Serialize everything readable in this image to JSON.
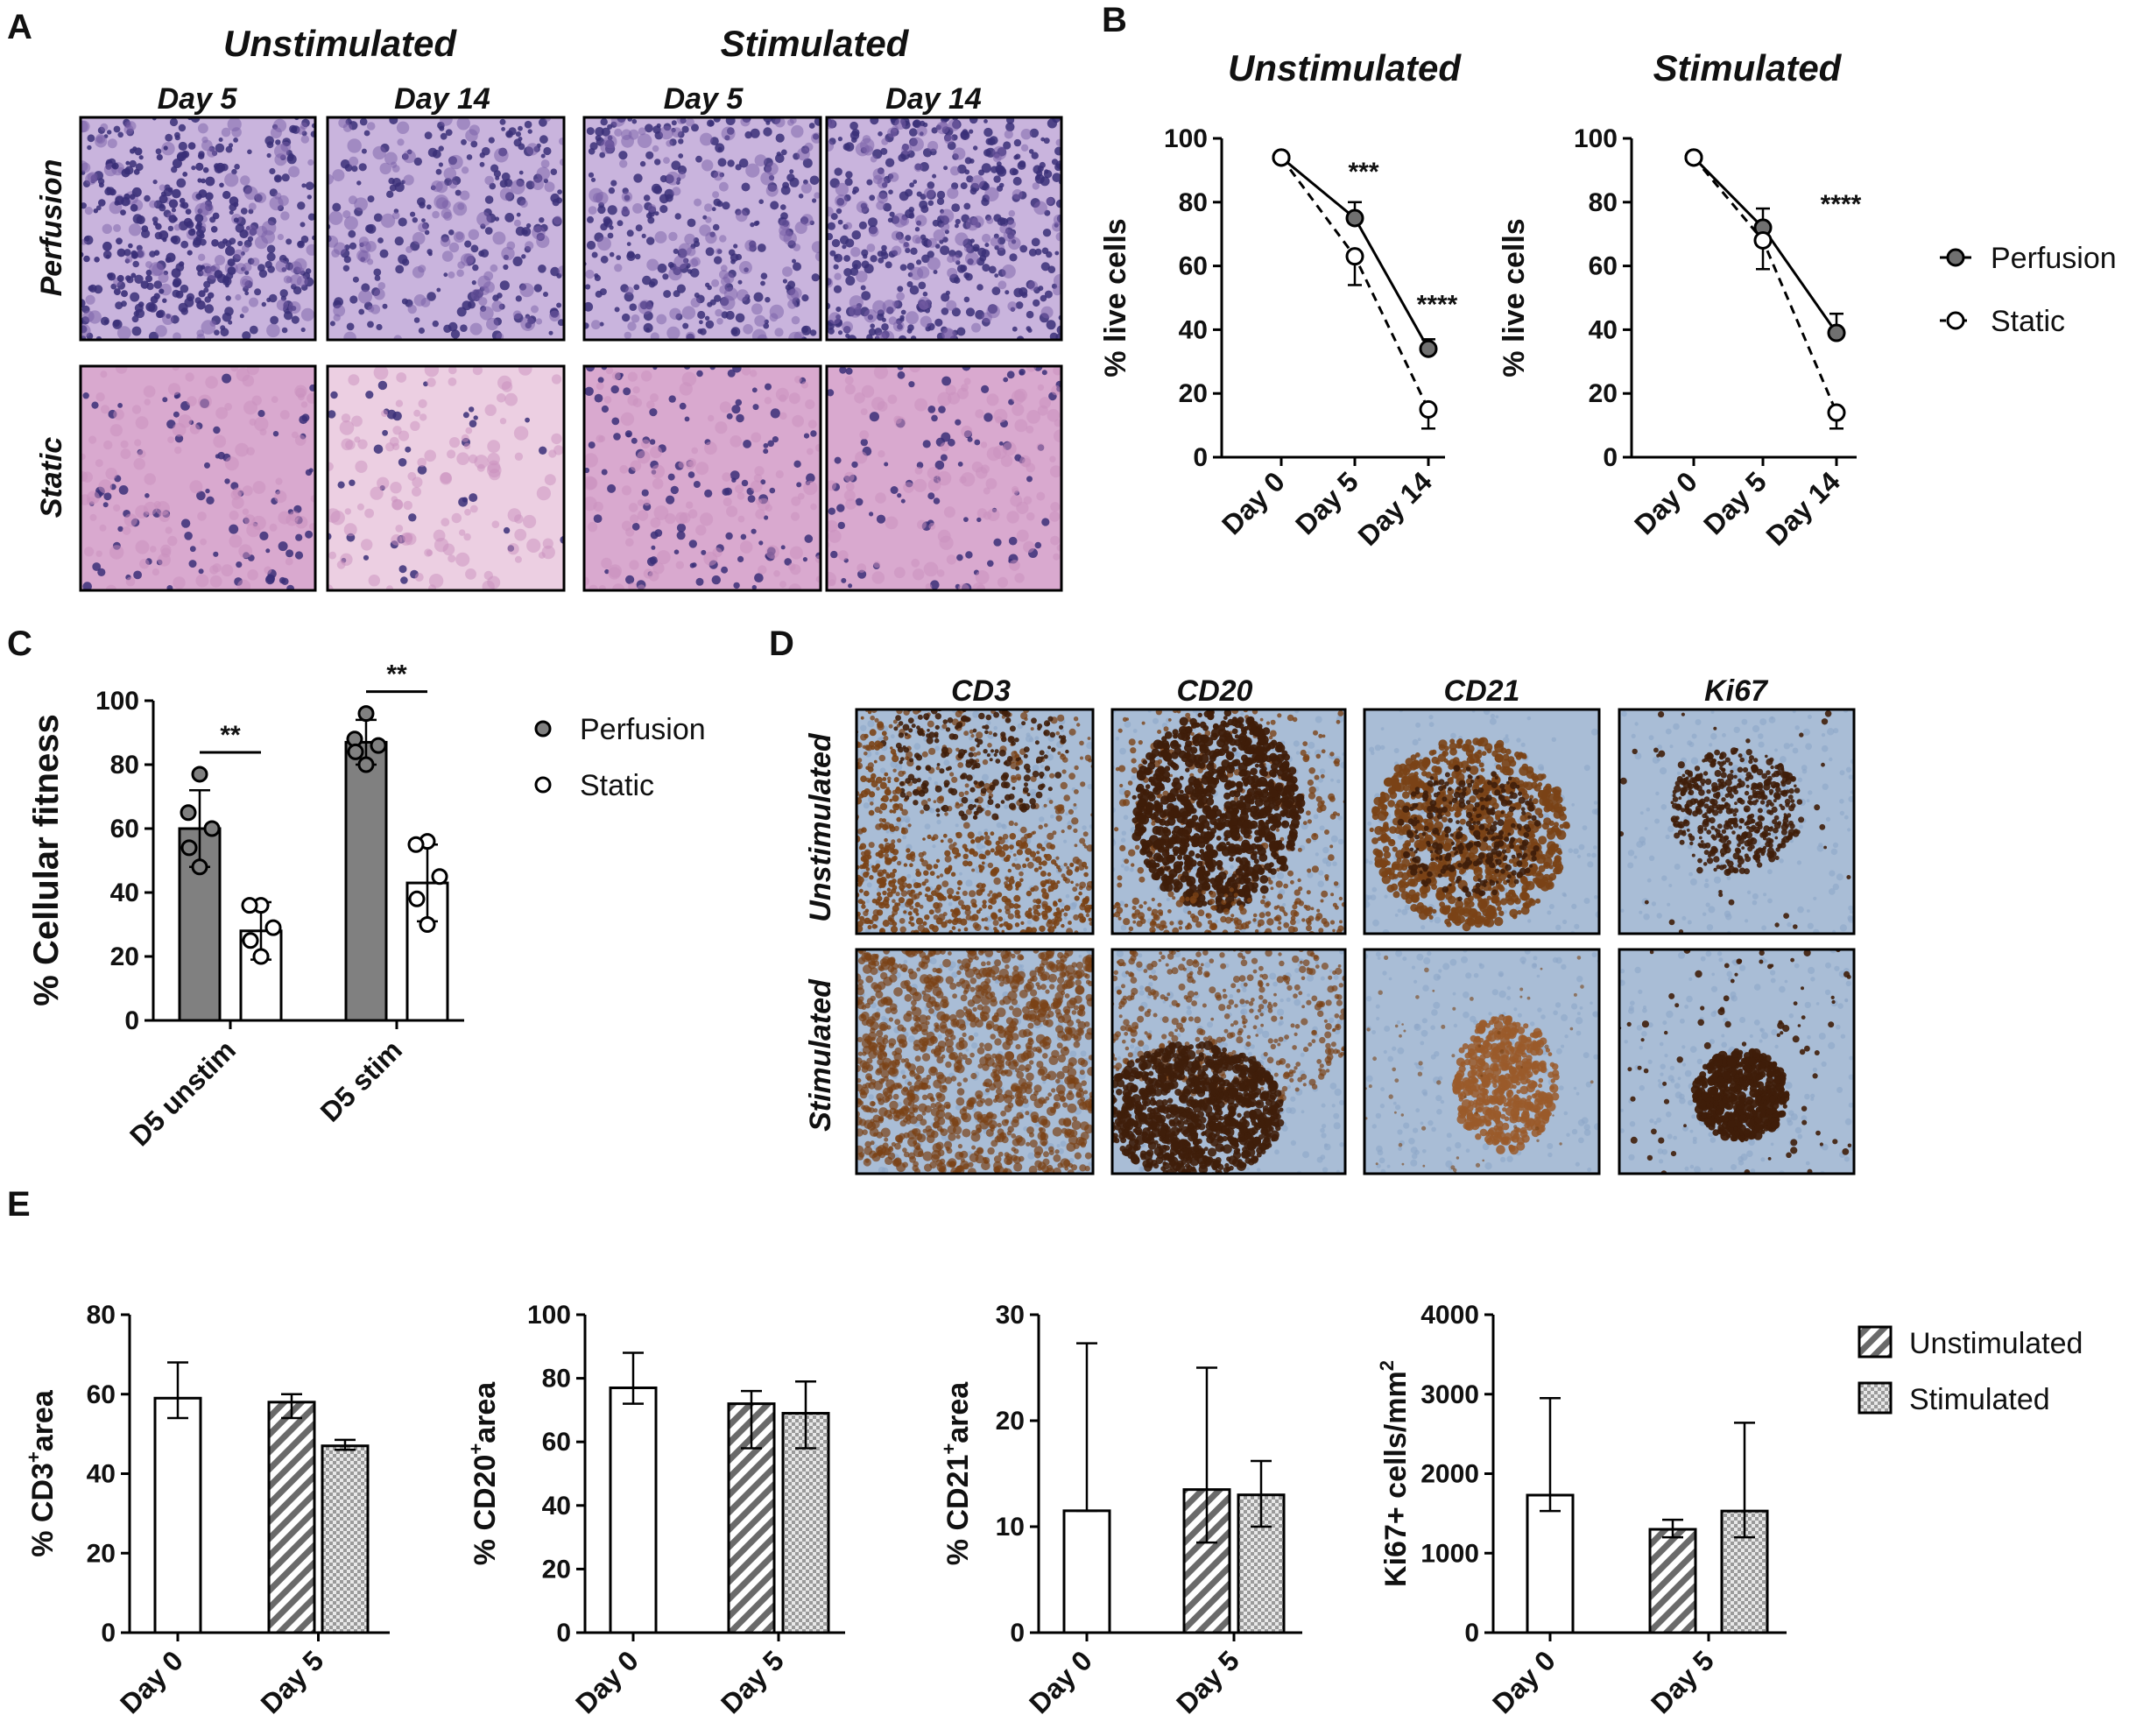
{
  "panel_labels": {
    "a": "A",
    "b": "B",
    "c": "C",
    "d": "D",
    "e": "E"
  },
  "panel_a": {
    "group_titles": [
      "Unstimulated",
      "Stimulated"
    ],
    "column_titles": [
      "Day 5",
      "Day 14",
      "Day 5",
      "Day 14"
    ],
    "row_titles": [
      "Perfusion",
      "Static"
    ],
    "stain_colors": {
      "dense_nuclei": "#3a2f78",
      "medium": "#7a5fa8",
      "pink_matrix": "#d9a9cf",
      "pale": "#eccfe2"
    }
  },
  "panel_d": {
    "column_titles": [
      "CD3",
      "CD20",
      "CD21",
      "Ki67"
    ],
    "row_titles": [
      "Unstimulated",
      "Stimulated"
    ],
    "stain_colors": {
      "background_blue": "#a9bdd6",
      "dab_brown": "#7a4216",
      "dark_brown": "#3f1e0a"
    }
  },
  "chart_data": [
    {
      "id": "B-left",
      "type": "line",
      "title": "Unstimulated",
      "categories": [
        "Day 0",
        "Day 5",
        "Day 14"
      ],
      "ylabel": "% live cells",
      "ylim": [
        0,
        100
      ],
      "yticks": [
        0,
        20,
        40,
        60,
        80,
        100
      ],
      "series": [
        {
          "name": "Perfusion",
          "values": [
            94,
            75,
            34
          ],
          "errors": [
            0,
            5,
            3
          ],
          "marker": "filled",
          "line": "solid"
        },
        {
          "name": "Static",
          "values": [
            94,
            63,
            15
          ],
          "errors": [
            0,
            9,
            6
          ],
          "marker": "open",
          "line": "dashed"
        }
      ],
      "annotations": [
        {
          "text": "***",
          "category": "Day 5"
        },
        {
          "text": "****",
          "category": "Day 14"
        }
      ]
    },
    {
      "id": "B-right",
      "type": "line",
      "title": "Stimulated",
      "categories": [
        "Day 0",
        "Day 5",
        "Day 14"
      ],
      "ylabel": "% live cells",
      "ylim": [
        0,
        100
      ],
      "yticks": [
        0,
        20,
        40,
        60,
        80,
        100
      ],
      "series": [
        {
          "name": "Perfusion",
          "values": [
            94,
            72,
            39
          ],
          "errors": [
            0,
            6,
            6
          ],
          "marker": "filled",
          "line": "solid"
        },
        {
          "name": "Static",
          "values": [
            94,
            68,
            14
          ],
          "errors": [
            0,
            9,
            5
          ],
          "marker": "open",
          "line": "dashed"
        }
      ],
      "annotations": [
        {
          "text": "****",
          "category": "Day 14"
        }
      ],
      "legend": [
        "Perfusion",
        "Static"
      ]
    },
    {
      "id": "C",
      "type": "bar",
      "categories": [
        "D5 unstim",
        "D5 stim"
      ],
      "ylabel": "% Cellular fitness",
      "ylim": [
        0,
        100
      ],
      "yticks": [
        0,
        20,
        40,
        60,
        80,
        100
      ],
      "series": [
        {
          "name": "Perfusion",
          "values": [
            60,
            87
          ],
          "errors": [
            12,
            7
          ],
          "points": [
            [
              77,
              65,
              60,
              54,
              48
            ],
            [
              96,
              88,
              86,
              84,
              80
            ]
          ],
          "color": "#808080"
        },
        {
          "name": "Static",
          "values": [
            28,
            43
          ],
          "errors": [
            9,
            12
          ],
          "points": [
            [
              36,
              36,
              29,
              25,
              20
            ],
            [
              56,
              55,
              45,
              38,
              30
            ]
          ],
          "color": "#ffffff"
        }
      ],
      "annotations": [
        {
          "text": "**",
          "category": "D5 unstim"
        },
        {
          "text": "**",
          "category": "D5 stim"
        }
      ],
      "legend": [
        "Perfusion",
        "Static"
      ]
    },
    {
      "id": "E1",
      "type": "bar",
      "categories": [
        "Day 0",
        "Day 5"
      ],
      "ylabel_main": "% CD3",
      "ylabel_sup": "+",
      "ylabel_tail": "area",
      "ylim": [
        0,
        80
      ],
      "yticks": [
        0,
        20,
        40,
        60,
        80
      ],
      "bars": [
        {
          "category": "Day 0",
          "value": 59,
          "err_low": 5,
          "err_high": 9,
          "fill": "white"
        },
        {
          "category": "Day 5",
          "series": "Unstimulated",
          "value": 58,
          "err_low": 4,
          "err_high": 2,
          "fill": "hatch"
        },
        {
          "category": "Day 5",
          "series": "Stimulated",
          "value": 47,
          "err_low": 1,
          "err_high": 1.5,
          "fill": "check"
        }
      ]
    },
    {
      "id": "E2",
      "type": "bar",
      "categories": [
        "Day 0",
        "Day 5"
      ],
      "ylabel_main": "% CD20",
      "ylabel_sup": "+",
      "ylabel_tail": "area",
      "ylim": [
        0,
        100
      ],
      "yticks": [
        0,
        20,
        40,
        60,
        80,
        100
      ],
      "bars": [
        {
          "category": "Day 0",
          "value": 77,
          "err_low": 5,
          "err_high": 11,
          "fill": "white"
        },
        {
          "category": "Day 5",
          "series": "Unstimulated",
          "value": 72,
          "err_low": 14,
          "err_high": 4,
          "fill": "hatch"
        },
        {
          "category": "Day 5",
          "series": "Stimulated",
          "value": 69,
          "err_low": 11,
          "err_high": 10,
          "fill": "check"
        }
      ]
    },
    {
      "id": "E3",
      "type": "bar",
      "categories": [
        "Day 0",
        "Day 5"
      ],
      "ylabel_main": "% CD21",
      "ylabel_sup": "+",
      "ylabel_tail": "area",
      "ylim": [
        0,
        30
      ],
      "yticks": [
        0,
        10,
        20,
        30
      ],
      "bars": [
        {
          "category": "Day 0",
          "value": 11.5,
          "err_low": 0,
          "err_high": 15.8,
          "fill": "white"
        },
        {
          "category": "Day 5",
          "series": "Unstimulated",
          "value": 13.5,
          "err_low": 5,
          "err_high": 11.5,
          "fill": "hatch"
        },
        {
          "category": "Day 5",
          "series": "Stimulated",
          "value": 13,
          "err_low": 3,
          "err_high": 3.2,
          "fill": "check"
        }
      ]
    },
    {
      "id": "E4",
      "type": "bar",
      "categories": [
        "Day 0",
        "Day 5"
      ],
      "ylabel_main": "Ki67+ cells/mm",
      "ylabel_sup": "2",
      "ylabel_tail": "",
      "ylim": [
        0,
        4000
      ],
      "yticks": [
        0,
        1000,
        2000,
        3000,
        4000
      ],
      "bars": [
        {
          "category": "Day 0",
          "value": 1730,
          "err_low": 200,
          "err_high": 1220,
          "fill": "white"
        },
        {
          "category": "Day 5",
          "series": "Unstimulated",
          "value": 1300,
          "err_low": 100,
          "err_high": 120,
          "fill": "hatch"
        },
        {
          "category": "Day 5",
          "series": "Stimulated",
          "value": 1530,
          "err_low": 330,
          "err_high": 1110,
          "fill": "check"
        }
      ],
      "legend": [
        "Unstimulated",
        "Stimulated"
      ]
    }
  ]
}
